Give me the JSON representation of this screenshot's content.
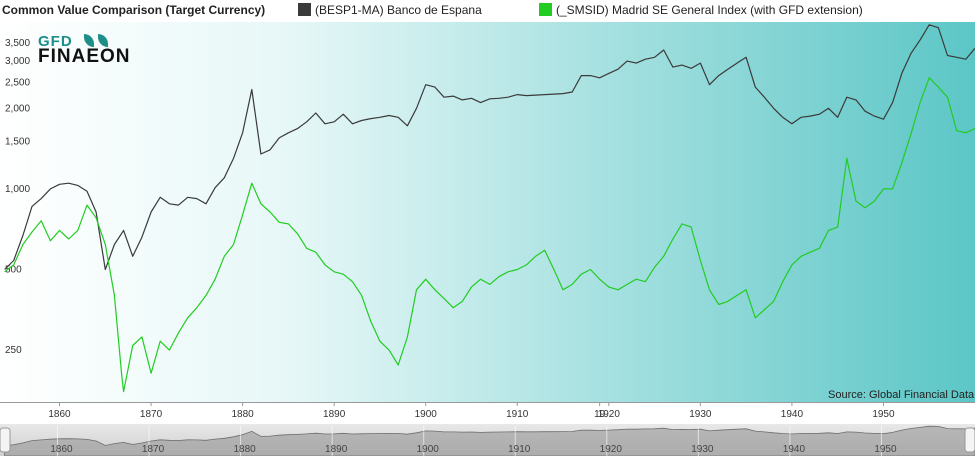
{
  "header": {
    "title": "Common Value Comparison (Target Currency)"
  },
  "source_note": "Source: Global Financial Data",
  "logo": {
    "line1": "GFD",
    "line2": "FINAEON"
  },
  "colors": {
    "series_1": "#3a3a3a",
    "series_2": "#22cc22",
    "background_left": "#ffffff",
    "background_right": "#5cc6c6"
  },
  "chart_data": {
    "type": "line",
    "title": "Common Value Comparison (Target Currency)",
    "xlabel": "",
    "ylabel": "",
    "y_scale": "log",
    "ylim": [
      160,
      4200
    ],
    "xlim": [
      1853.5,
      1960
    ],
    "x_ticks": [
      "1860",
      "1870",
      "1880",
      "1890",
      "1900",
      "1910",
      "1920",
      "1930",
      "1940",
      "1950",
      "19"
    ],
    "y_ticks": [
      "250",
      "500",
      "1,000",
      "1,500",
      "2,000",
      "2,500",
      "3,000",
      "3,500"
    ],
    "legend_position": "top",
    "grid": false,
    "series": [
      {
        "name": "(BESP1-MA) Banco de Espana",
        "points": [
          [
            1854,
            500
          ],
          [
            1855,
            540
          ],
          [
            1856,
            670
          ],
          [
            1857,
            860
          ],
          [
            1858,
            920
          ],
          [
            1859,
            1000
          ],
          [
            1860,
            1040
          ],
          [
            1861,
            1050
          ],
          [
            1862,
            1030
          ],
          [
            1863,
            980
          ],
          [
            1864,
            820
          ],
          [
            1865,
            500
          ],
          [
            1866,
            620
          ],
          [
            1867,
            700
          ],
          [
            1868,
            560
          ],
          [
            1869,
            660
          ],
          [
            1870,
            820
          ],
          [
            1871,
            930
          ],
          [
            1872,
            880
          ],
          [
            1873,
            870
          ],
          [
            1874,
            930
          ],
          [
            1875,
            920
          ],
          [
            1876,
            880
          ],
          [
            1877,
            1010
          ],
          [
            1878,
            1100
          ],
          [
            1879,
            1300
          ],
          [
            1880,
            1620
          ],
          [
            1881,
            2350
          ],
          [
            1882,
            1350
          ],
          [
            1883,
            1400
          ],
          [
            1884,
            1550
          ],
          [
            1885,
            1620
          ],
          [
            1886,
            1680
          ],
          [
            1887,
            1780
          ],
          [
            1888,
            1920
          ],
          [
            1889,
            1750
          ],
          [
            1890,
            1780
          ],
          [
            1891,
            1900
          ],
          [
            1892,
            1750
          ],
          [
            1893,
            1800
          ],
          [
            1894,
            1830
          ],
          [
            1895,
            1850
          ],
          [
            1896,
            1880
          ],
          [
            1897,
            1850
          ],
          [
            1898,
            1720
          ],
          [
            1899,
            2000
          ],
          [
            1900,
            2450
          ],
          [
            1901,
            2400
          ],
          [
            1902,
            2200
          ],
          [
            1903,
            2220
          ],
          [
            1904,
            2150
          ],
          [
            1905,
            2180
          ],
          [
            1906,
            2100
          ],
          [
            1907,
            2170
          ],
          [
            1908,
            2180
          ],
          [
            1909,
            2200
          ],
          [
            1910,
            2250
          ],
          [
            1911,
            2230
          ],
          [
            1912,
            2240
          ],
          [
            1913,
            2250
          ],
          [
            1914,
            2260
          ],
          [
            1915,
            2270
          ],
          [
            1916,
            2300
          ],
          [
            1917,
            2650
          ],
          [
            1918,
            2650
          ],
          [
            1919,
            2600
          ],
          [
            1920,
            2700
          ],
          [
            1921,
            2800
          ],
          [
            1922,
            3000
          ],
          [
            1923,
            2950
          ],
          [
            1924,
            3050
          ],
          [
            1925,
            3100
          ],
          [
            1926,
            3300
          ],
          [
            1927,
            2850
          ],
          [
            1928,
            2900
          ],
          [
            1929,
            2820
          ],
          [
            1930,
            2950
          ],
          [
            1931,
            2450
          ],
          [
            1932,
            2650
          ],
          [
            1933,
            2800
          ],
          [
            1934,
            2950
          ],
          [
            1935,
            3100
          ],
          [
            1936,
            2400
          ],
          [
            1937,
            2200
          ],
          [
            1938,
            2000
          ],
          [
            1939,
            1850
          ],
          [
            1940,
            1750
          ],
          [
            1941,
            1850
          ],
          [
            1942,
            1870
          ],
          [
            1943,
            1900
          ],
          [
            1944,
            2000
          ],
          [
            1945,
            1850
          ],
          [
            1946,
            2200
          ],
          [
            1947,
            2150
          ],
          [
            1948,
            1950
          ],
          [
            1949,
            1870
          ],
          [
            1950,
            1820
          ],
          [
            1951,
            2100
          ],
          [
            1952,
            2700
          ],
          [
            1953,
            3200
          ],
          [
            1954,
            3600
          ],
          [
            1955,
            4100
          ],
          [
            1956,
            4000
          ],
          [
            1957,
            3150
          ],
          [
            1958,
            3100
          ],
          [
            1959,
            3050
          ],
          [
            1960,
            3350
          ]
        ]
      },
      {
        "name": "(_SMSID) Madrid SE General Index (with GFD extension)",
        "points": [
          [
            1854,
            490
          ],
          [
            1855,
            520
          ],
          [
            1856,
            620
          ],
          [
            1857,
            690
          ],
          [
            1858,
            760
          ],
          [
            1859,
            640
          ],
          [
            1860,
            700
          ],
          [
            1861,
            650
          ],
          [
            1862,
            700
          ],
          [
            1863,
            870
          ],
          [
            1864,
            780
          ],
          [
            1865,
            620
          ],
          [
            1866,
            400
          ],
          [
            1866.8,
            200
          ],
          [
            1867,
            175
          ],
          [
            1868,
            260
          ],
          [
            1869,
            280
          ],
          [
            1870,
            205
          ],
          [
            1871,
            270
          ],
          [
            1872,
            250
          ],
          [
            1873,
            290
          ],
          [
            1874,
            330
          ],
          [
            1875,
            360
          ],
          [
            1876,
            400
          ],
          [
            1877,
            460
          ],
          [
            1878,
            560
          ],
          [
            1879,
            620
          ],
          [
            1880,
            800
          ],
          [
            1881,
            1050
          ],
          [
            1882,
            880
          ],
          [
            1883,
            820
          ],
          [
            1884,
            750
          ],
          [
            1885,
            740
          ],
          [
            1886,
            680
          ],
          [
            1887,
            600
          ],
          [
            1888,
            580
          ],
          [
            1889,
            520
          ],
          [
            1890,
            490
          ],
          [
            1891,
            480
          ],
          [
            1892,
            450
          ],
          [
            1893,
            400
          ],
          [
            1894,
            320
          ],
          [
            1895,
            270
          ],
          [
            1896,
            250
          ],
          [
            1897,
            220
          ],
          [
            1898,
            280
          ],
          [
            1899,
            420
          ],
          [
            1900,
            460
          ],
          [
            1901,
            420
          ],
          [
            1902,
            390
          ],
          [
            1903,
            360
          ],
          [
            1904,
            380
          ],
          [
            1905,
            430
          ],
          [
            1906,
            460
          ],
          [
            1907,
            440
          ],
          [
            1908,
            470
          ],
          [
            1909,
            490
          ],
          [
            1910,
            500
          ],
          [
            1911,
            520
          ],
          [
            1912,
            560
          ],
          [
            1913,
            590
          ],
          [
            1914,
            500
          ],
          [
            1915,
            420
          ],
          [
            1916,
            440
          ],
          [
            1917,
            480
          ],
          [
            1918,
            500
          ],
          [
            1919,
            460
          ],
          [
            1920,
            430
          ],
          [
            1921,
            420
          ],
          [
            1922,
            440
          ],
          [
            1923,
            460
          ],
          [
            1924,
            450
          ],
          [
            1925,
            510
          ],
          [
            1926,
            560
          ],
          [
            1927,
            650
          ],
          [
            1928,
            740
          ],
          [
            1929,
            720
          ],
          [
            1930,
            540
          ],
          [
            1931,
            420
          ],
          [
            1932,
            370
          ],
          [
            1933,
            380
          ],
          [
            1934,
            400
          ],
          [
            1935,
            420
          ],
          [
            1936,
            330
          ],
          [
            1938,
            380
          ],
          [
            1939,
            450
          ],
          [
            1940,
            520
          ],
          [
            1941,
            560
          ],
          [
            1942,
            580
          ],
          [
            1943,
            600
          ],
          [
            1944,
            700
          ],
          [
            1945,
            720
          ],
          [
            1946,
            1300
          ],
          [
            1947,
            900
          ],
          [
            1948,
            850
          ],
          [
            1949,
            900
          ],
          [
            1950,
            1000
          ],
          [
            1951,
            1000
          ],
          [
            1952,
            1250
          ],
          [
            1953,
            1600
          ],
          [
            1954,
            2100
          ],
          [
            1955,
            2600
          ],
          [
            1956,
            2400
          ],
          [
            1957,
            2200
          ],
          [
            1958,
            1650
          ],
          [
            1959,
            1620
          ],
          [
            1960,
            1680
          ]
        ]
      }
    ]
  }
}
